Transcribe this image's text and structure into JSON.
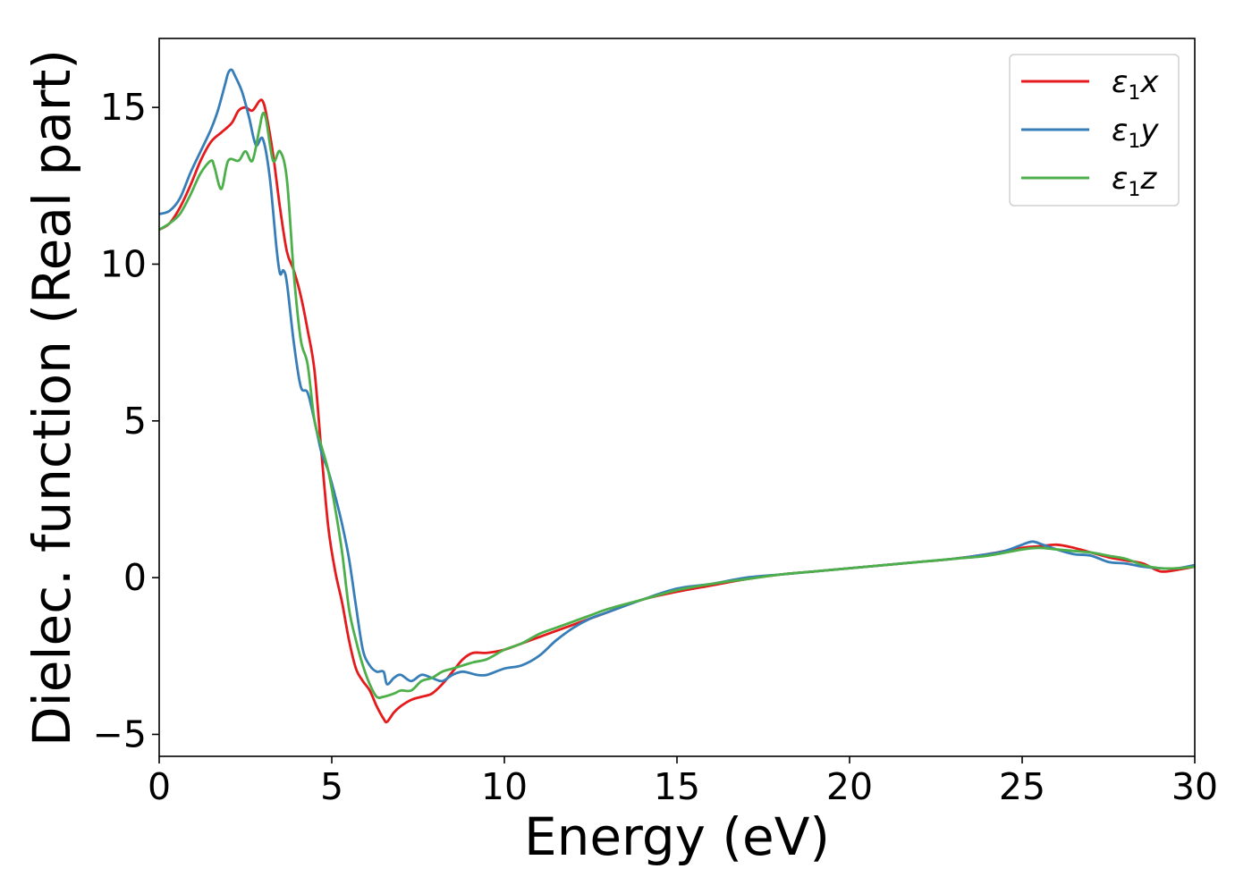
{
  "chart_data": {
    "type": "line",
    "xlabel": "Energy (eV)",
    "ylabel": "Dielec. function (Real part)",
    "xlim": [
      0,
      30
    ],
    "ylim": [
      -5.7,
      17.2
    ],
    "xticks": [
      0,
      5,
      10,
      15,
      20,
      25,
      30
    ],
    "yticks": [
      -5,
      0,
      5,
      10,
      15
    ],
    "grid": false,
    "legend_position": "top-right",
    "series": [
      {
        "name": "ε1x",
        "legend_symbol": "ε",
        "legend_sub": "1",
        "legend_var": "x",
        "color": "#e41a1c",
        "x": [
          0,
          0.3,
          0.6,
          0.9,
          1.2,
          1.5,
          1.8,
          2.1,
          2.3,
          2.5,
          2.7,
          2.9,
          3.0,
          3.1,
          3.3,
          3.5,
          3.7,
          3.9,
          4.1,
          4.3,
          4.5,
          4.7,
          4.9,
          5.1,
          5.3,
          5.5,
          5.7,
          5.9,
          6.1,
          6.3,
          6.5,
          6.6,
          6.8,
          7.0,
          7.3,
          7.6,
          7.9,
          8.2,
          8.5,
          8.8,
          9.1,
          9.5,
          10.0,
          10.5,
          11.0,
          11.5,
          12.0,
          12.5,
          13.0,
          14.0,
          15.0,
          16.0,
          17.0,
          18.0,
          19.0,
          20.0,
          21.0,
          22.0,
          23.0,
          24.0,
          25.0,
          25.5,
          26.0,
          26.5,
          27.0,
          27.5,
          28.0,
          28.5,
          29.0,
          29.5,
          30.0
        ],
        "y": [
          11.1,
          11.3,
          11.8,
          12.5,
          13.3,
          13.9,
          14.2,
          14.5,
          14.9,
          15.0,
          14.9,
          15.2,
          15.2,
          14.8,
          13.5,
          11.8,
          10.4,
          9.8,
          9.0,
          7.9,
          6.6,
          4.0,
          1.6,
          0.2,
          -0.8,
          -2.0,
          -2.9,
          -3.3,
          -3.6,
          -4.1,
          -4.5,
          -4.6,
          -4.3,
          -4.1,
          -3.9,
          -3.8,
          -3.7,
          -3.4,
          -3.0,
          -2.6,
          -2.4,
          -2.4,
          -2.3,
          -2.1,
          -1.9,
          -1.7,
          -1.5,
          -1.3,
          -1.1,
          -0.7,
          -0.45,
          -0.25,
          -0.05,
          0.1,
          0.2,
          0.3,
          0.4,
          0.5,
          0.6,
          0.75,
          0.95,
          1.0,
          1.05,
          0.95,
          0.8,
          0.65,
          0.55,
          0.45,
          0.2,
          0.25,
          0.35
        ]
      },
      {
        "name": "ε1y",
        "legend_symbol": "ε",
        "legend_sub": "1",
        "legend_var": "y",
        "color": "#377eb8",
        "x": [
          0,
          0.3,
          0.6,
          0.9,
          1.2,
          1.5,
          1.7,
          1.9,
          2.0,
          2.1,
          2.2,
          2.4,
          2.6,
          2.8,
          3.0,
          3.2,
          3.4,
          3.5,
          3.6,
          3.7,
          3.9,
          4.1,
          4.3,
          4.5,
          4.7,
          4.9,
          5.1,
          5.3,
          5.5,
          5.7,
          5.9,
          6.1,
          6.3,
          6.5,
          6.6,
          6.8,
          7.0,
          7.3,
          7.6,
          7.9,
          8.2,
          8.5,
          8.8,
          9.2,
          9.5,
          10.0,
          10.5,
          11.0,
          11.5,
          12.0,
          12.5,
          13.0,
          14.0,
          15.0,
          16.0,
          17.0,
          18.0,
          19.0,
          20.0,
          21.0,
          22.0,
          23.0,
          24.0,
          24.5,
          25.0,
          25.3,
          25.6,
          26.0,
          26.5,
          27.0,
          27.5,
          28.0,
          28.5,
          29.0,
          29.5,
          30.0
        ],
        "y": [
          11.6,
          11.7,
          12.1,
          12.9,
          13.6,
          14.3,
          14.9,
          15.7,
          16.1,
          16.2,
          16.0,
          15.5,
          14.7,
          13.8,
          14.0,
          12.8,
          10.5,
          9.7,
          9.8,
          9.4,
          7.5,
          6.1,
          5.9,
          5.0,
          4.0,
          3.4,
          2.6,
          1.7,
          0.6,
          -0.9,
          -2.3,
          -2.8,
          -3.0,
          -3.0,
          -3.4,
          -3.2,
          -3.1,
          -3.3,
          -3.1,
          -3.2,
          -3.3,
          -3.1,
          -3.0,
          -3.1,
          -3.1,
          -2.9,
          -2.8,
          -2.5,
          -2.0,
          -1.6,
          -1.3,
          -1.1,
          -0.7,
          -0.35,
          -0.2,
          0.0,
          0.1,
          0.2,
          0.3,
          0.4,
          0.5,
          0.6,
          0.75,
          0.85,
          1.05,
          1.15,
          1.05,
          0.9,
          0.75,
          0.7,
          0.5,
          0.45,
          0.35,
          0.3,
          0.3,
          0.4
        ]
      },
      {
        "name": "ε1z",
        "legend_symbol": "ε",
        "legend_sub": "1",
        "legend_var": "z",
        "color": "#4daf4a",
        "x": [
          0,
          0.3,
          0.6,
          0.9,
          1.2,
          1.5,
          1.6,
          1.8,
          2.0,
          2.3,
          2.5,
          2.7,
          2.9,
          3.0,
          3.1,
          3.3,
          3.5,
          3.7,
          3.9,
          4.1,
          4.3,
          4.5,
          4.7,
          4.9,
          5.1,
          5.3,
          5.5,
          5.7,
          5.9,
          6.1,
          6.3,
          6.5,
          6.8,
          7.0,
          7.3,
          7.6,
          7.9,
          8.2,
          8.5,
          8.8,
          9.1,
          9.5,
          10.0,
          10.5,
          11.0,
          11.5,
          12.0,
          12.5,
          13.0,
          14.0,
          15.0,
          16.0,
          17.0,
          18.0,
          19.0,
          20.0,
          21.0,
          22.0,
          23.0,
          24.0,
          25.0,
          25.5,
          26.0,
          26.5,
          27.0,
          27.5,
          28.0,
          28.5,
          29.0,
          29.5,
          30.0
        ],
        "y": [
          11.1,
          11.3,
          11.6,
          12.2,
          12.9,
          13.3,
          13.1,
          12.4,
          13.3,
          13.3,
          13.6,
          13.3,
          14.3,
          14.8,
          14.6,
          13.3,
          13.6,
          12.7,
          9.7,
          7.6,
          6.8,
          5.0,
          4.2,
          3.4,
          2.2,
          0.8,
          -1.0,
          -2.0,
          -2.8,
          -3.4,
          -3.8,
          -3.8,
          -3.7,
          -3.6,
          -3.6,
          -3.3,
          -3.2,
          -3.0,
          -2.9,
          -2.8,
          -2.7,
          -2.6,
          -2.3,
          -2.1,
          -1.8,
          -1.6,
          -1.4,
          -1.2,
          -1.0,
          -0.7,
          -0.4,
          -0.2,
          -0.05,
          0.1,
          0.2,
          0.3,
          0.4,
          0.5,
          0.6,
          0.7,
          0.9,
          0.95,
          0.9,
          0.85,
          0.8,
          0.7,
          0.6,
          0.4,
          0.3,
          0.3,
          0.35
        ]
      }
    ]
  }
}
